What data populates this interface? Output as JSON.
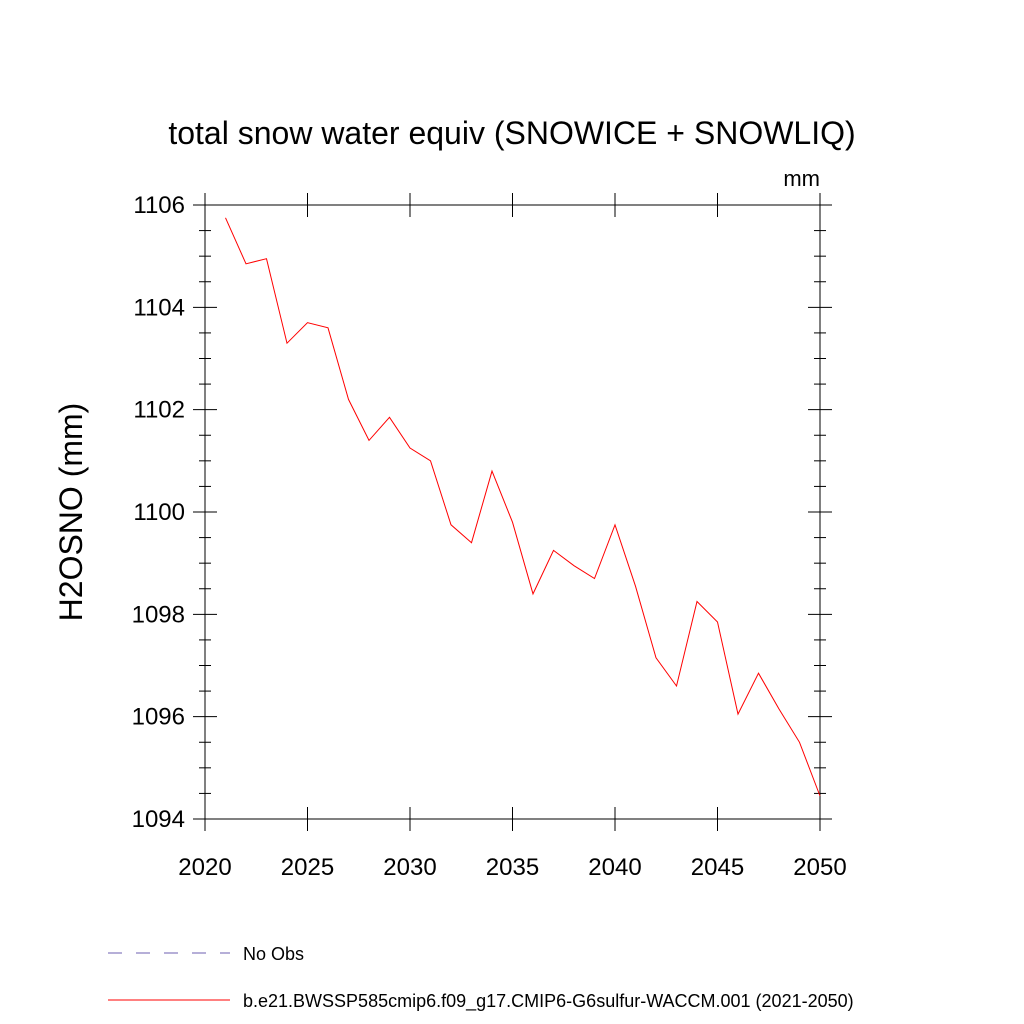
{
  "chart_data": {
    "type": "line",
    "title": "total snow water equiv (SNOWICE + SNOWLIQ)",
    "units": "mm",
    "ylabel": "H2OSNO  (mm)",
    "xlabel": "",
    "xlim": [
      2020,
      2050
    ],
    "ylim": [
      1094,
      1106
    ],
    "x_ticks": [
      2020,
      2025,
      2030,
      2035,
      2040,
      2045,
      2050
    ],
    "y_ticks": [
      1094,
      1096,
      1098,
      1100,
      1102,
      1104,
      1106
    ],
    "grid": false,
    "series": [
      {
        "name": "b.e21.BWSSP585cmip6.f09_g17.CMIP6-G6sulfur-WACCM.001 (2021-2050)",
        "color": "#ff0000",
        "x": [
          2021,
          2022,
          2023,
          2024,
          2025,
          2026,
          2027,
          2028,
          2029,
          2030,
          2031,
          2032,
          2033,
          2034,
          2035,
          2036,
          2037,
          2038,
          2039,
          2040,
          2041,
          2042,
          2043,
          2044,
          2045,
          2046,
          2047,
          2048,
          2049,
          2050
        ],
        "y": [
          1105.75,
          1104.85,
          1104.95,
          1103.3,
          1103.7,
          1103.6,
          1102.2,
          1101.4,
          1101.85,
          1101.25,
          1101.0,
          1099.75,
          1099.4,
          1100.8,
          1099.8,
          1098.4,
          1099.25,
          1098.95,
          1098.7,
          1099.75,
          1098.55,
          1097.15,
          1096.6,
          1098.25,
          1097.85,
          1096.05,
          1096.85,
          1096.15,
          1095.5,
          1094.45
        ]
      }
    ],
    "legend": {
      "placement": "bottom",
      "entries": [
        {
          "label": "No Obs",
          "color": "#6e5fb0",
          "style": "dashed"
        },
        {
          "label": "b.e21.BWSSP585cmip6.f09_g17.CMIP6-G6sulfur-WACCM.001 (2021-2050)",
          "color": "#ff0000",
          "style": "solid"
        }
      ]
    }
  }
}
